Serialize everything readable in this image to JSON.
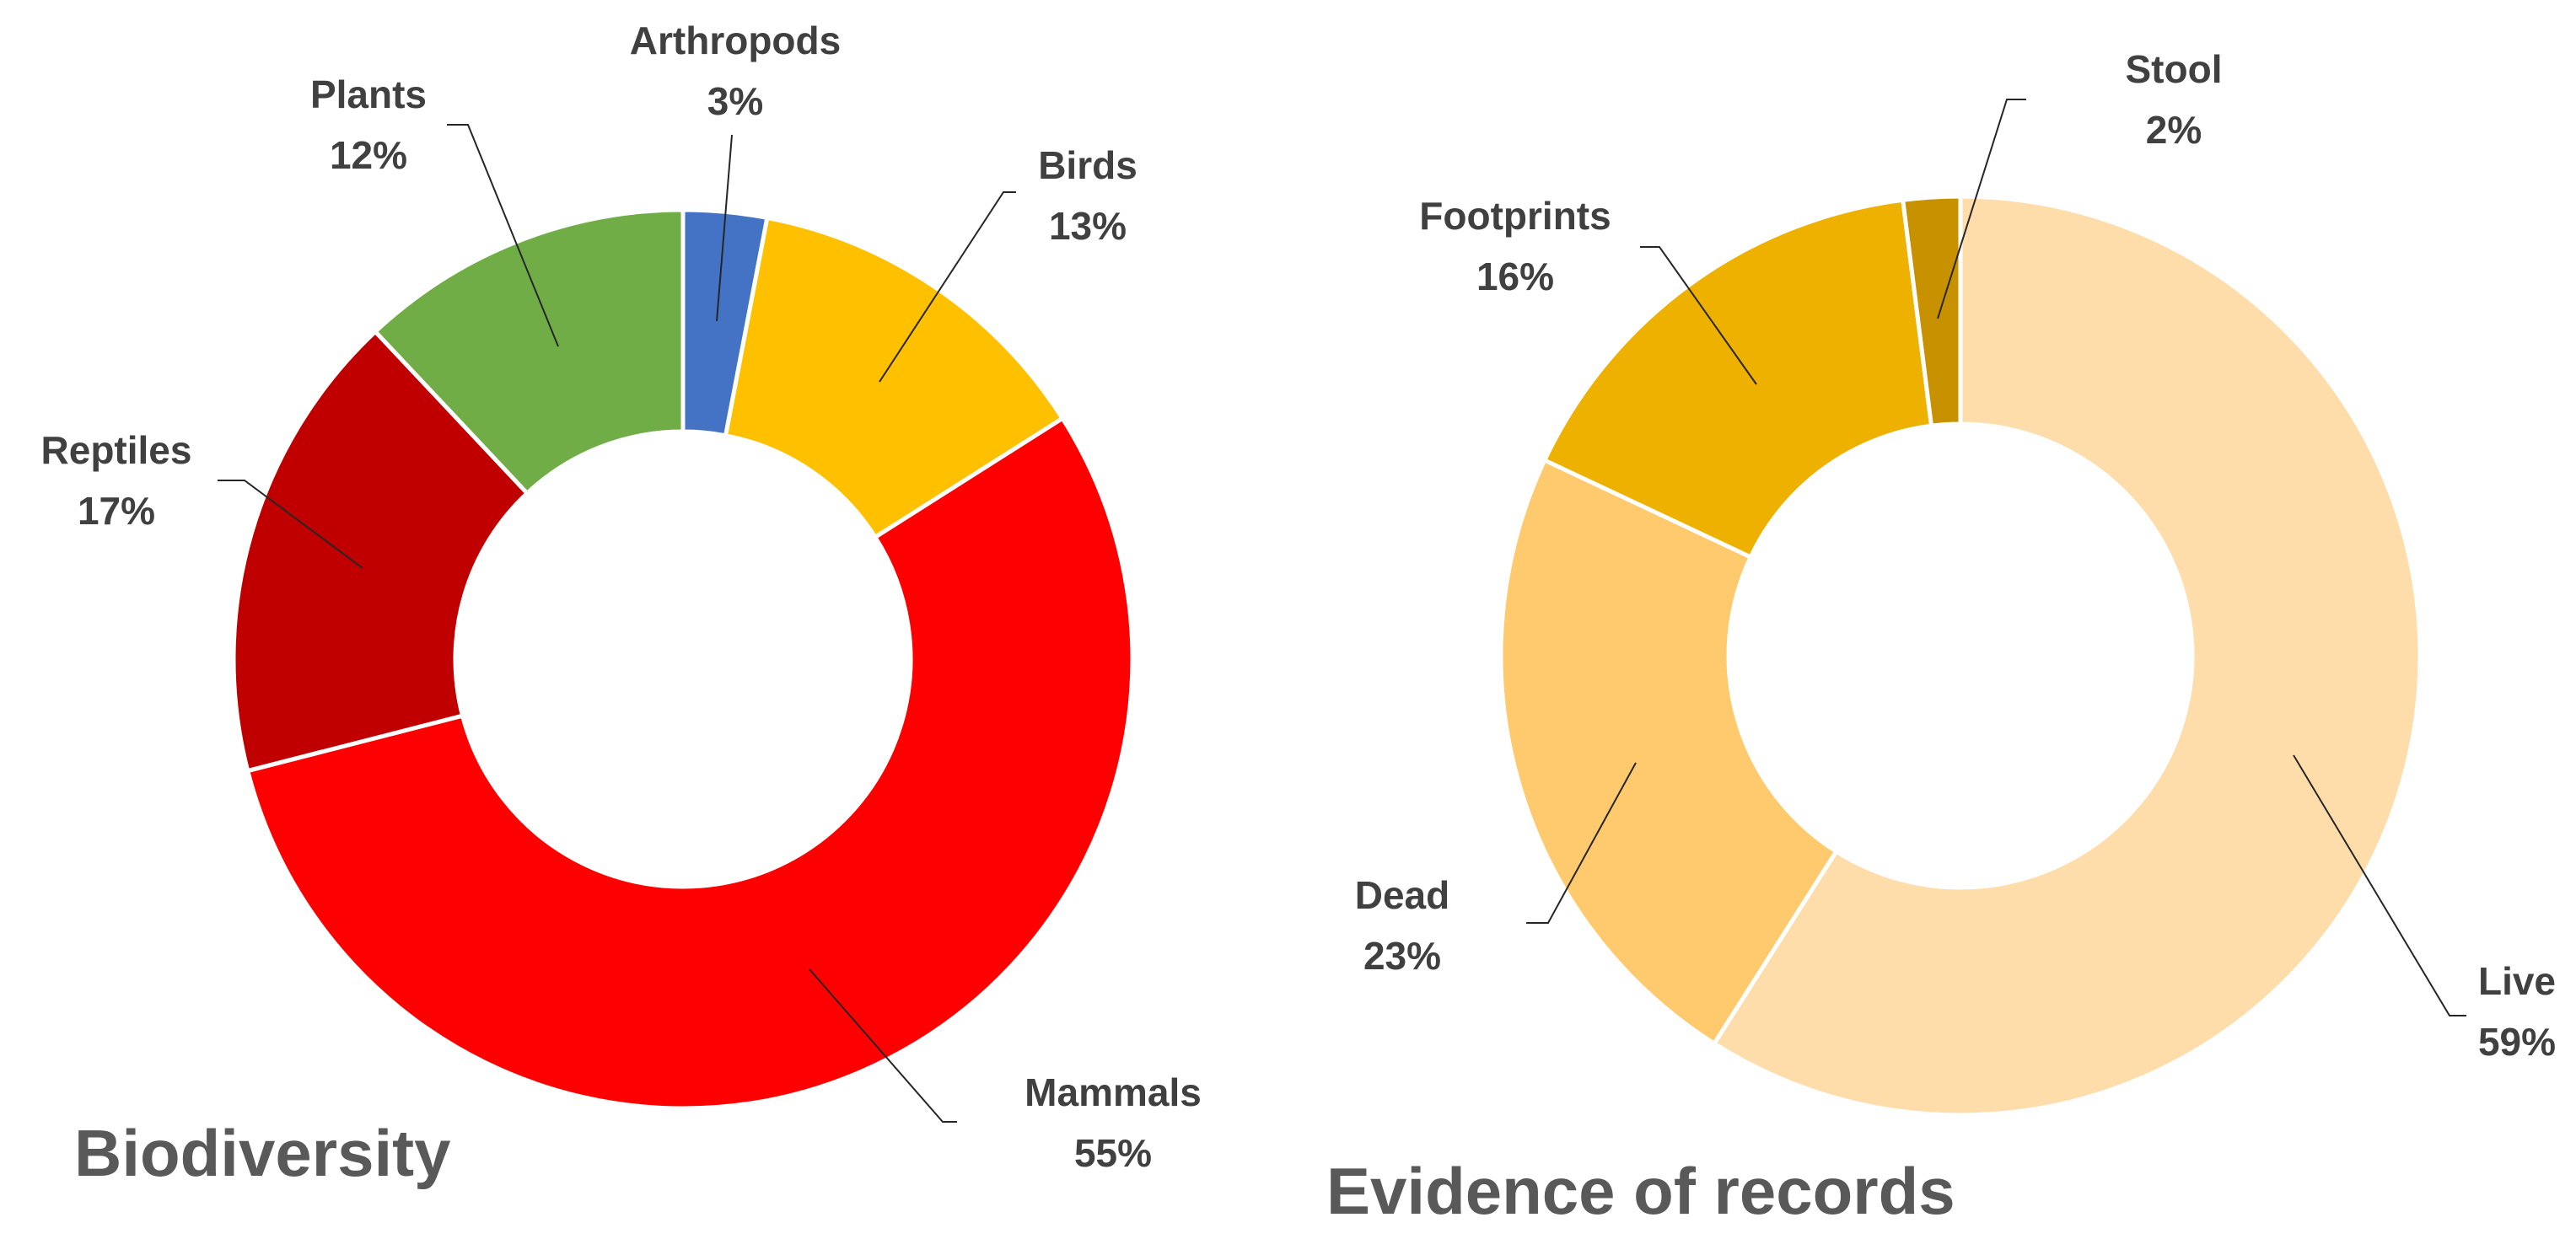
{
  "chart_data": [
    {
      "type": "pie",
      "title": "Biodiversity",
      "series": [
        {
          "slices": [
            {
              "label": "Arthropods",
              "value": 3,
              "value_label": "3%",
              "color": "#4472C4"
            },
            {
              "label": "Birds",
              "value": 13,
              "value_label": "13%",
              "color": "#FFC000"
            },
            {
              "label": "Mammals",
              "value": 55,
              "value_label": "55%",
              "color": "#FF0000"
            },
            {
              "label": "Reptiles",
              "value": 17,
              "value_label": "17%",
              "color": "#C00000"
            },
            {
              "label": "Plants",
              "value": 12,
              "value_label": "12%",
              "color": "#70AD47"
            }
          ]
        }
      ]
    },
    {
      "type": "pie",
      "title": "Evidence of records",
      "series": [
        {
          "slices": [
            {
              "label": "Live",
              "value": 59,
              "value_label": "59%",
              "color": "#FFDDAA"
            },
            {
              "label": "Dead",
              "value": 23,
              "value_label": "23%",
              "color": "#FFCA6E"
            },
            {
              "label": "Footprints",
              "value": 16,
              "value_label": "16%",
              "color": "#EEB100"
            },
            {
              "label": "Stool",
              "value": 2,
              "value_label": "2%",
              "color": "#C79100"
            }
          ]
        }
      ]
    }
  ]
}
